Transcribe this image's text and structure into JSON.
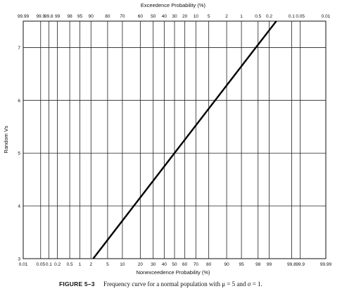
{
  "chart_data": {
    "type": "line",
    "top_xlabel": "Exceedence Probability (%)",
    "xlabel": "Nonexceedence Probability (%)",
    "ylabel": "Random Vs",
    "x_scale": "normal-probability",
    "xlim": [
      0.01,
      99.99
    ],
    "ylim": [
      3,
      7.5
    ],
    "grid": true,
    "bottom_ticks": [
      0.01,
      0.05,
      0.1,
      0.2,
      0.5,
      1,
      2,
      5,
      10,
      20,
      30,
      40,
      50,
      60,
      70,
      80,
      90,
      95,
      98,
      99,
      99.8,
      99.9,
      99.99
    ],
    "top_ticks": [
      99.99,
      99.9,
      99.8,
      99,
      98,
      95,
      90,
      80,
      70,
      60,
      50,
      40,
      30,
      20,
      10,
      5,
      2,
      1,
      0.5,
      0.2,
      0.1,
      0.05,
      0.01
    ],
    "top_ticks_label": [
      "99.99",
      "99.9",
      "99.8",
      "99",
      "98",
      "95",
      "90",
      "80",
      "70",
      "60",
      "50",
      "40",
      "30",
      "20",
      "10",
      "5",
      "2",
      "1",
      "0.5",
      "0.2",
      "0.1",
      "0.05",
      "0.01"
    ],
    "bottom_ticks_label": [
      "0.01",
      "0.05",
      "0.1",
      "0.2",
      "0.5",
      "1",
      "2",
      "5",
      "10",
      "20",
      "30",
      "40",
      "50",
      "60",
      "70",
      "80",
      "90",
      "95",
      "98",
      "99",
      "99.8",
      "99.9",
      "99.99"
    ],
    "y_ticks": [
      3,
      4,
      5,
      6,
      7
    ],
    "series": [
      {
        "x": [
          2.28,
          97.72,
          99.38
        ],
        "y": [
          3,
          7,
          7.5
        ]
      }
    ]
  },
  "caption": {
    "figure_label": "FIGURE 5–3",
    "text": "Frequency curve for a normal population with μ = 5 and σ = 1."
  }
}
